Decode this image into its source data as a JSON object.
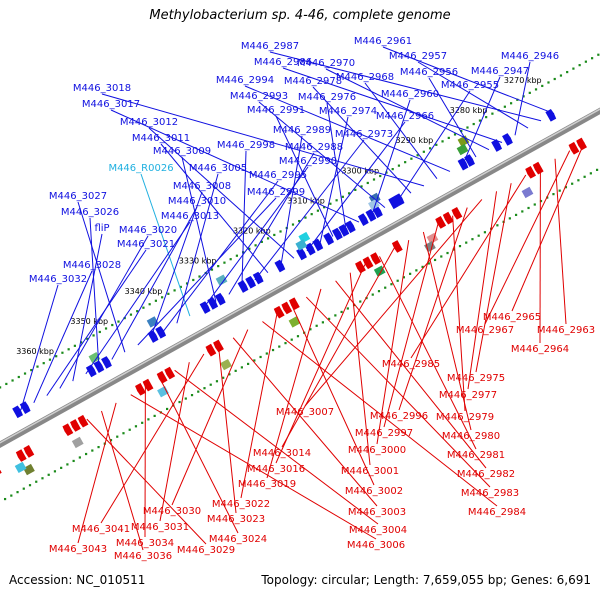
{
  "title": "Methylobacterium sp. 4-46, complete genome",
  "footer": {
    "accession": "Accession: NC_010511",
    "topology": "Topology: circular; Length: 7,659,055 bp; Genes: 6,691"
  },
  "colors": {
    "forward_gene": "#1010e0",
    "reverse_gene": "#e00000",
    "rna_gene": "#20b0e0",
    "backbone": "#888888",
    "dots": "#1a8a1a"
  },
  "ticks": [
    "3270 kbp",
    "3280 kbp",
    "3290 kbp",
    "3300 kbp",
    "3310 kbp",
    "3320 kbp",
    "3330 kbp",
    "3340 kbp",
    "3350 kbp",
    "3360 kbp"
  ],
  "forward_labels": [
    "M446_2961",
    "M446_2987",
    "M446_2957",
    "M446_2946",
    "M446_2986",
    "M446_2970",
    "M446_2956",
    "M446_2947",
    "M446_2994",
    "M446_2968",
    "M446_3018",
    "M446_2978",
    "M446_2955",
    "M446_2993",
    "M446_2960",
    "M446_3017",
    "M446_2976",
    "M446_2991",
    "M446_2974",
    "M446_2966",
    "M446_3012",
    "M446_2989",
    "M446_3011",
    "M446_2973",
    "M446_2998",
    "M446_2988",
    "M446_3009",
    "M446_2990",
    "M446_R0026",
    "M446_3005",
    "M446_2995",
    "M446_3008",
    "M446_2999",
    "M446_3027",
    "M446_3010",
    "M446_3026",
    "M446_3013",
    "fliP",
    "M446_3020",
    "M446_3021",
    "M446_3028",
    "M446_3032"
  ],
  "reverse_labels": [
    "M446_2965",
    "M446_2967",
    "M446_2963",
    "M446_2964",
    "M446_2985",
    "M446_2975",
    "M446_2977",
    "M446_3007",
    "M446_2996",
    "M446_2979",
    "M446_2997",
    "M446_2980",
    "M446_3000",
    "M446_3014",
    "M446_2981",
    "M446_3016",
    "M446_3001",
    "M446_2982",
    "M446_3019",
    "M446_2983",
    "M446_3002",
    "M446_3022",
    "M446_2984",
    "M446_3030",
    "M446_3003",
    "M446_3023",
    "M446_3041",
    "M446_3031",
    "M446_3004",
    "M446_3024",
    "M446_3034",
    "M446_3006",
    "M446_3043",
    "M446_3036",
    "M446_3029"
  ]
}
